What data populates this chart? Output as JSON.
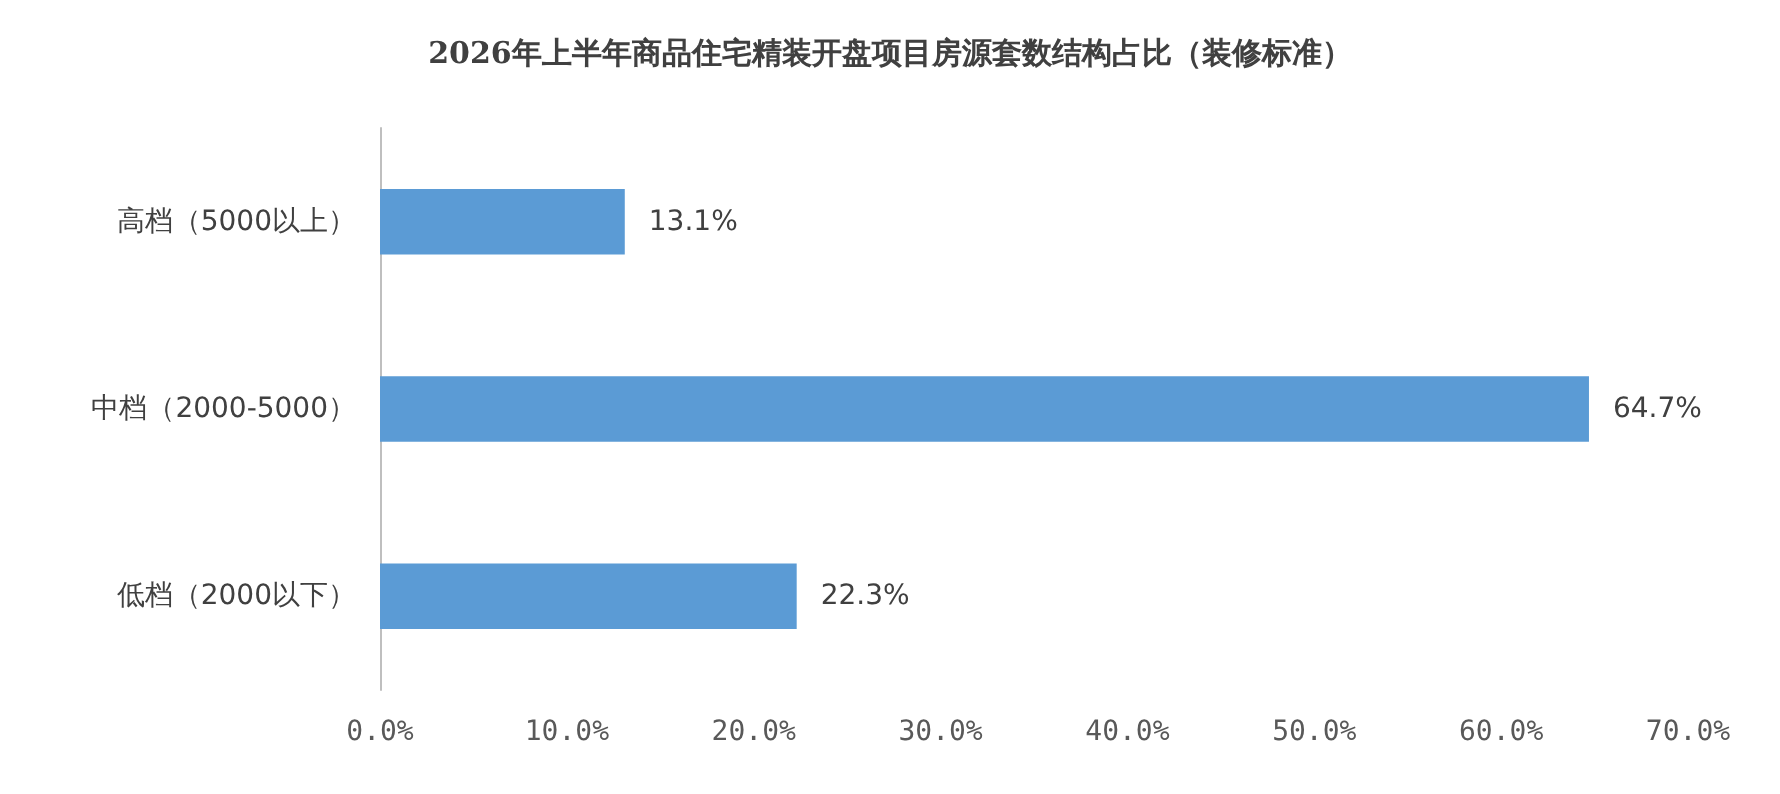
{
  "chart_data": {
    "type": "bar",
    "orientation": "horizontal",
    "title": "2026年上半年商品住宅精装开盘项目房源套数结构占比（装修标准）",
    "categories": [
      "高档（5000以上）",
      "中档（2000-5000）",
      "低档（2000以下）"
    ],
    "values": [
      13.1,
      64.7,
      22.3
    ],
    "value_labels": [
      "13.1%",
      "64.7%",
      "22.3%"
    ],
    "color": "#5b9bd5",
    "xlim": [
      0,
      70
    ],
    "xticks": [
      {
        "value": 0,
        "label": "0.0%"
      },
      {
        "value": 10,
        "label": "10.0%"
      },
      {
        "value": 20,
        "label": "20.0%"
      },
      {
        "value": 30,
        "label": "30.0%"
      },
      {
        "value": 40,
        "label": "40.0%"
      },
      {
        "value": 50,
        "label": "50.0%"
      },
      {
        "value": 60,
        "label": "60.0%"
      },
      {
        "value": 70,
        "label": "70.0%"
      }
    ],
    "grid": false
  }
}
